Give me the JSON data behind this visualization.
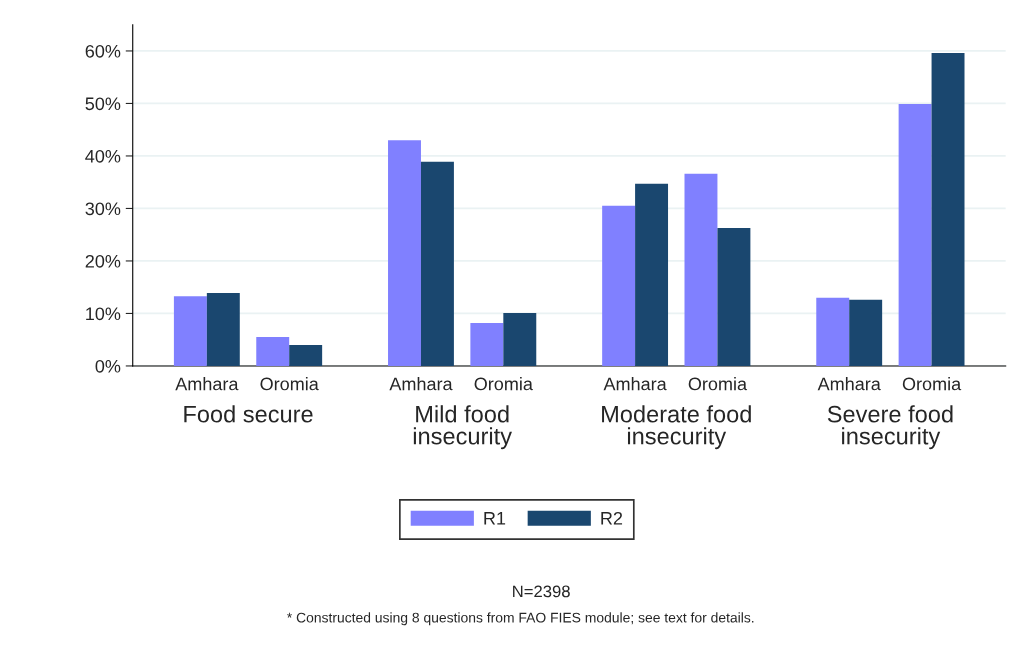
{
  "chart_data": {
    "type": "bar",
    "categories": [
      "Amhara",
      "Oromia",
      "Amhara",
      "Oromia",
      "Amhara",
      "Oromia",
      "Amhara",
      "Oromia"
    ],
    "series": [
      {
        "name": "R1",
        "color": "#8080ff",
        "values": [
          13.3,
          5.5,
          43.0,
          8.2,
          30.5,
          36.6,
          13.0,
          49.9
        ]
      },
      {
        "name": "R2",
        "color": "#1a476f",
        "values": [
          13.9,
          4.0,
          38.9,
          10.1,
          34.7,
          26.3,
          12.6,
          59.6
        ]
      }
    ],
    "ylim": [
      0,
      65
    ],
    "yticks": [
      {
        "value": 0,
        "label": "0%"
      },
      {
        "value": 10,
        "label": "10%"
      },
      {
        "value": 20,
        "label": "20%"
      },
      {
        "value": 30,
        "label": "30%"
      },
      {
        "value": 40,
        "label": "40%"
      },
      {
        "value": 50,
        "label": "50%"
      },
      {
        "value": 60,
        "label": "60%"
      }
    ],
    "grid": "y",
    "legend": "bottom",
    "annotations": [
      "Food secure",
      "Mild food\ninsecurity",
      "Moderate food\ninsecurity",
      "Severe food\ninsecurity",
      "N=2398",
      "* Constructed using 8 questions from FAO FIES module; see text for details."
    ]
  }
}
